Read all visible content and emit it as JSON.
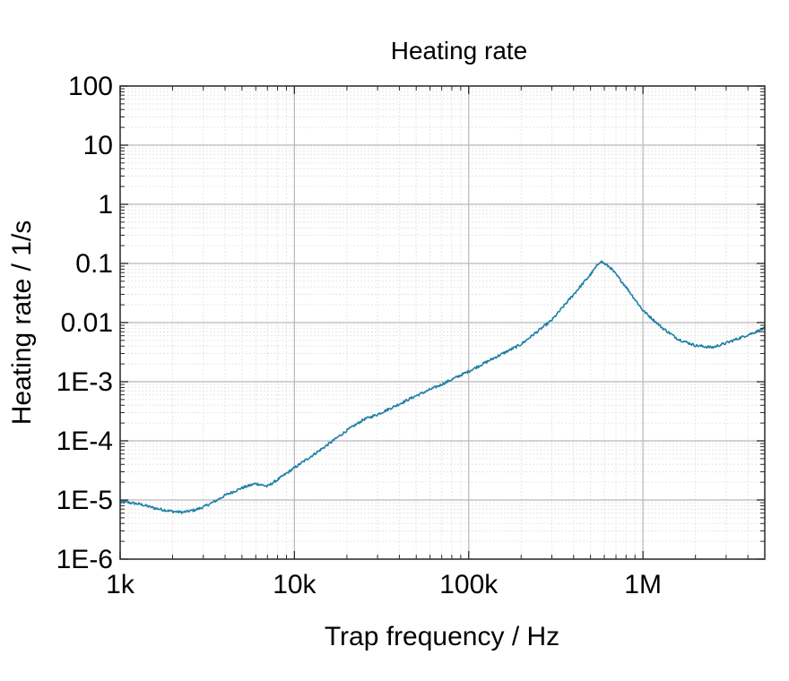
{
  "chart_data": {
    "type": "line",
    "title": "Heating rate",
    "xlabel": "Trap frequency / Hz",
    "ylabel": "Heating rate / 1/s",
    "x_scale": "log",
    "y_scale": "log",
    "xlim": [
      1000,
      5000000
    ],
    "ylim": [
      1e-06,
      100
    ],
    "x_ticks": [
      {
        "value": 1000,
        "label": "1k"
      },
      {
        "value": 10000,
        "label": "10k"
      },
      {
        "value": 100000,
        "label": "100k"
      },
      {
        "value": 1000000,
        "label": "1M"
      }
    ],
    "y_ticks": [
      {
        "value": 100,
        "label": "100"
      },
      {
        "value": 10,
        "label": "10"
      },
      {
        "value": 1,
        "label": "1"
      },
      {
        "value": 0.1,
        "label": "0.1"
      },
      {
        "value": 0.01,
        "label": "0.01"
      },
      {
        "value": 0.001,
        "label": "1E-3"
      },
      {
        "value": 0.0001,
        "label": "1E-4"
      },
      {
        "value": 1e-05,
        "label": "1E-5"
      },
      {
        "value": 1e-06,
        "label": "1E-6"
      }
    ],
    "grid": true,
    "series": [
      {
        "name": "Heating rate",
        "color": "#1f7fa8",
        "x": [
          1000,
          1300,
          1600,
          2000,
          2300,
          2700,
          3000,
          3500,
          4000,
          5000,
          6000,
          6500,
          7000,
          8000,
          10000,
          15000,
          20000,
          25000,
          30000,
          40000,
          50000,
          70000,
          100000,
          150000,
          200000,
          300000,
          400000,
          500000,
          570000,
          650000,
          800000,
          1000000,
          1300000,
          1600000,
          2000000,
          2500000,
          3000000,
          4000000,
          5000000
        ],
        "y": [
          9.5e-06,
          8.5e-06,
          7.2e-06,
          6.4e-06,
          6.2e-06,
          6.8e-06,
          7.6e-06,
          9.5e-06,
          1.2e-05,
          1.6e-05,
          1.9e-05,
          1.8e-05,
          1.7e-05,
          2.2e-05,
          3.5e-05,
          8e-05,
          0.00015,
          0.00023,
          0.00028,
          0.00042,
          0.00058,
          0.0009,
          0.0015,
          0.0028,
          0.0043,
          0.011,
          0.03,
          0.065,
          0.11,
          0.085,
          0.04,
          0.016,
          0.008,
          0.0052,
          0.0041,
          0.0038,
          0.0045,
          0.0062,
          0.008
        ]
      }
    ]
  }
}
